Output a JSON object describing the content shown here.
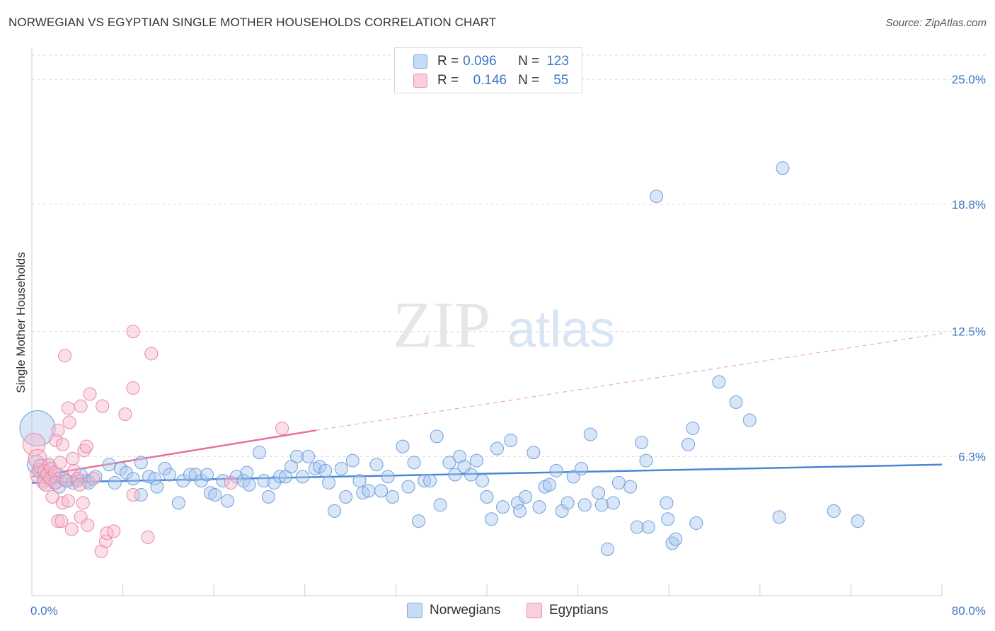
{
  "header": {
    "title": "NORWEGIAN VS EGYPTIAN SINGLE MOTHER HOUSEHOLDS CORRELATION CHART",
    "source": "Source: ZipAtlas.com"
  },
  "legend_top": {
    "rows": [
      {
        "r_label": "R =",
        "r_value": "0.096",
        "n_label": "N =",
        "n_value": "123",
        "color": "#a9c8ee"
      },
      {
        "r_label": "R =",
        "r_value": "0.146",
        "n_label": "N =",
        "n_value": "55",
        "color": "#f6b8c9"
      }
    ]
  },
  "legend_bottom": {
    "items": [
      {
        "label": "Norwegians",
        "color": "#a9c8ee"
      },
      {
        "label": "Egyptians",
        "color": "#f6b8c9"
      }
    ]
  },
  "watermark": {
    "zip": "ZIP",
    "atlas": "atlas"
  },
  "chart_data": {
    "type": "scatter",
    "title": "NORWEGIAN VS EGYPTIAN SINGLE MOTHER HOUSEHOLDS CORRELATION CHART",
    "xlabel": "",
    "ylabel": "Single Mother Households",
    "xlim": [
      0,
      80
    ],
    "ylim": [
      0,
      26.2
    ],
    "x_tick_labels": [
      "0.0%",
      "80.0%"
    ],
    "y_ticks": [
      6.3,
      12.5,
      18.8,
      25.0
    ],
    "y_tick_labels": [
      "6.3%",
      "12.5%",
      "18.8%",
      "25.0%"
    ],
    "colors": {
      "norwegians": "#4a86d4",
      "egyptians": "#e8709a",
      "axis_label": "#3a77c7"
    },
    "series": [
      {
        "name": "Norwegians",
        "r": 0.096,
        "n": 123,
        "trend": {
          "x": [
            0,
            80
          ],
          "y": [
            5.0,
            5.9
          ],
          "dashed_after": null
        },
        "points": [
          [
            0.5,
            7.7,
            36
          ],
          [
            0.4,
            5.9,
            18
          ],
          [
            0.7,
            5.6,
            14
          ],
          [
            1.0,
            5.1,
            12
          ],
          [
            1.3,
            5.5,
            12
          ],
          [
            1.5,
            5.9,
            12
          ],
          [
            1.7,
            5.2,
            12
          ],
          [
            2.0,
            5.0,
            12
          ],
          [
            2.3,
            5.4,
            12
          ],
          [
            2.4,
            4.8,
            12
          ],
          [
            2.8,
            5.2,
            12
          ],
          [
            3.1,
            5.1,
            12
          ],
          [
            3.6,
            5.0,
            12
          ],
          [
            4.0,
            5.1,
            12
          ],
          [
            4.3,
            5.4,
            12
          ],
          [
            4.9,
            5.1,
            12
          ],
          [
            5.0,
            5.0,
            12
          ],
          [
            5.6,
            5.3,
            12
          ],
          [
            6.8,
            5.9,
            12
          ],
          [
            7.3,
            5.0,
            12
          ],
          [
            7.8,
            5.7,
            12
          ],
          [
            8.3,
            5.5,
            12
          ],
          [
            8.9,
            5.2,
            12
          ],
          [
            9.6,
            4.4,
            12
          ],
          [
            9.6,
            6.0,
            12
          ],
          [
            10.3,
            5.3,
            12
          ],
          [
            10.8,
            5.2,
            12
          ],
          [
            11.0,
            4.8,
            12
          ],
          [
            11.7,
            5.7,
            12
          ],
          [
            12.1,
            5.4,
            12
          ],
          [
            12.9,
            4.0,
            12
          ],
          [
            13.3,
            5.1,
            12
          ],
          [
            13.9,
            5.4,
            12
          ],
          [
            14.4,
            5.4,
            12
          ],
          [
            14.9,
            5.1,
            12
          ],
          [
            15.4,
            5.4,
            12
          ],
          [
            15.7,
            4.5,
            12
          ],
          [
            16.1,
            4.4,
            12
          ],
          [
            16.8,
            5.1,
            12
          ],
          [
            17.2,
            4.1,
            12
          ],
          [
            18.0,
            5.3,
            12
          ],
          [
            18.6,
            5.1,
            12
          ],
          [
            18.9,
            5.5,
            12
          ],
          [
            19.1,
            4.9,
            12
          ],
          [
            20.0,
            6.5,
            12
          ],
          [
            20.4,
            5.1,
            12
          ],
          [
            20.8,
            4.3,
            12
          ],
          [
            21.3,
            5.0,
            12
          ],
          [
            21.8,
            5.3,
            12
          ],
          [
            22.3,
            5.3,
            12
          ],
          [
            22.8,
            5.8,
            12
          ],
          [
            23.3,
            6.3,
            12
          ],
          [
            23.8,
            5.3,
            12
          ],
          [
            24.3,
            6.3,
            12
          ],
          [
            24.9,
            5.7,
            12
          ],
          [
            25.3,
            5.8,
            12
          ],
          [
            25.8,
            5.6,
            12
          ],
          [
            26.1,
            5.0,
            12
          ],
          [
            26.6,
            3.6,
            12
          ],
          [
            27.2,
            5.7,
            12
          ],
          [
            27.6,
            4.3,
            12
          ],
          [
            28.2,
            6.1,
            12
          ],
          [
            28.8,
            5.1,
            12
          ],
          [
            29.1,
            4.5,
            12
          ],
          [
            29.6,
            4.6,
            12
          ],
          [
            30.3,
            5.9,
            12
          ],
          [
            30.7,
            4.6,
            12
          ],
          [
            31.3,
            5.3,
            12
          ],
          [
            31.7,
            4.3,
            12
          ],
          [
            32.6,
            6.8,
            12
          ],
          [
            33.1,
            4.8,
            12
          ],
          [
            33.6,
            6.0,
            12
          ],
          [
            34.0,
            3.1,
            12
          ],
          [
            34.5,
            5.1,
            12
          ],
          [
            35.0,
            5.1,
            12
          ],
          [
            35.6,
            7.3,
            12
          ],
          [
            35.9,
            3.9,
            12
          ],
          [
            36.7,
            6.0,
            12
          ],
          [
            37.2,
            5.4,
            12
          ],
          [
            37.6,
            6.3,
            12
          ],
          [
            38.0,
            5.8,
            12
          ],
          [
            38.6,
            5.4,
            12
          ],
          [
            39.1,
            6.1,
            12
          ],
          [
            39.6,
            5.1,
            12
          ],
          [
            40.0,
            4.3,
            12
          ],
          [
            40.4,
            3.2,
            12
          ],
          [
            40.9,
            6.7,
            12
          ],
          [
            41.4,
            3.8,
            12
          ],
          [
            42.1,
            7.1,
            12
          ],
          [
            42.7,
            4.0,
            12
          ],
          [
            42.9,
            3.6,
            12
          ],
          [
            43.4,
            4.3,
            12
          ],
          [
            44.1,
            6.5,
            12
          ],
          [
            44.6,
            3.8,
            12
          ],
          [
            45.1,
            4.8,
            12
          ],
          [
            45.5,
            4.9,
            12
          ],
          [
            46.1,
            5.6,
            12
          ],
          [
            46.6,
            3.6,
            12
          ],
          [
            47.1,
            4.0,
            12
          ],
          [
            47.6,
            5.3,
            12
          ],
          [
            48.3,
            5.7,
            12
          ],
          [
            48.6,
            3.9,
            12
          ],
          [
            49.1,
            7.4,
            12
          ],
          [
            49.8,
            4.5,
            12
          ],
          [
            50.1,
            3.9,
            12
          ],
          [
            50.6,
            1.7,
            12
          ],
          [
            51.1,
            4.0,
            12
          ],
          [
            51.6,
            5.0,
            12
          ],
          [
            52.6,
            4.8,
            12
          ],
          [
            53.2,
            2.8,
            12
          ],
          [
            53.6,
            7.0,
            12
          ],
          [
            54.0,
            6.1,
            12
          ],
          [
            54.2,
            2.8,
            12
          ],
          [
            54.9,
            19.2,
            12
          ],
          [
            55.8,
            4.0,
            12
          ],
          [
            55.9,
            3.2,
            12
          ],
          [
            56.3,
            2.0,
            12
          ],
          [
            56.6,
            2.2,
            12
          ],
          [
            57.7,
            6.9,
            12
          ],
          [
            58.1,
            7.7,
            12
          ],
          [
            58.4,
            3.0,
            12
          ],
          [
            60.4,
            10.0,
            12
          ],
          [
            61.9,
            9.0,
            12
          ],
          [
            63.1,
            8.1,
            12
          ],
          [
            65.7,
            3.3,
            12
          ],
          [
            66.0,
            20.6,
            12
          ],
          [
            70.5,
            3.6,
            12
          ],
          [
            72.6,
            3.1,
            12
          ]
        ]
      },
      {
        "name": "Egyptians",
        "r": 0.146,
        "n": 55,
        "trend": {
          "x": [
            0,
            25
          ],
          "y": [
            5.3,
            7.6
          ],
          "dashed_to": [
            80,
            12.4
          ]
        },
        "points": [
          [
            0.2,
            6.9,
            22
          ],
          [
            0.5,
            6.2,
            18
          ],
          [
            0.6,
            5.4,
            16
          ],
          [
            0.8,
            5.8,
            14
          ],
          [
            1.0,
            5.0,
            12
          ],
          [
            1.1,
            5.6,
            12
          ],
          [
            1.2,
            4.9,
            12
          ],
          [
            1.3,
            5.4,
            12
          ],
          [
            1.5,
            5.9,
            12
          ],
          [
            1.6,
            5.2,
            12
          ],
          [
            1.7,
            5.7,
            12
          ],
          [
            1.8,
            4.3,
            12
          ],
          [
            2.0,
            5.5,
            12
          ],
          [
            2.1,
            5.0,
            12
          ],
          [
            2.1,
            7.1,
            12
          ],
          [
            2.3,
            3.1,
            12
          ],
          [
            2.3,
            7.6,
            12
          ],
          [
            2.5,
            6.0,
            12
          ],
          [
            2.6,
            3.1,
            12
          ],
          [
            2.7,
            4.0,
            12
          ],
          [
            2.7,
            6.9,
            12
          ],
          [
            2.9,
            11.3,
            12
          ],
          [
            3.0,
            5.1,
            12
          ],
          [
            3.2,
            4.1,
            12
          ],
          [
            3.2,
            8.7,
            12
          ],
          [
            3.3,
            8.0,
            12
          ],
          [
            3.5,
            2.7,
            12
          ],
          [
            3.6,
            6.2,
            12
          ],
          [
            3.7,
            5.6,
            12
          ],
          [
            4.0,
            5.2,
            12
          ],
          [
            4.2,
            4.9,
            12
          ],
          [
            4.3,
            3.3,
            12
          ],
          [
            4.3,
            8.8,
            12
          ],
          [
            4.5,
            4.0,
            12
          ],
          [
            4.6,
            6.6,
            12
          ],
          [
            4.8,
            6.8,
            12
          ],
          [
            4.9,
            2.9,
            12
          ],
          [
            5.1,
            9.4,
            12
          ],
          [
            5.4,
            5.2,
            12
          ],
          [
            6.1,
            1.6,
            12
          ],
          [
            6.2,
            8.8,
            12
          ],
          [
            6.5,
            2.1,
            12
          ],
          [
            6.6,
            2.5,
            12
          ],
          [
            7.2,
            2.6,
            12
          ],
          [
            8.2,
            8.4,
            12
          ],
          [
            8.9,
            12.5,
            12
          ],
          [
            8.9,
            9.7,
            12
          ],
          [
            8.9,
            4.4,
            12
          ],
          [
            10.2,
            2.3,
            12
          ],
          [
            10.5,
            11.4,
            12
          ],
          [
            17.5,
            5.0,
            12
          ],
          [
            22.0,
            7.7,
            12
          ]
        ]
      }
    ]
  }
}
